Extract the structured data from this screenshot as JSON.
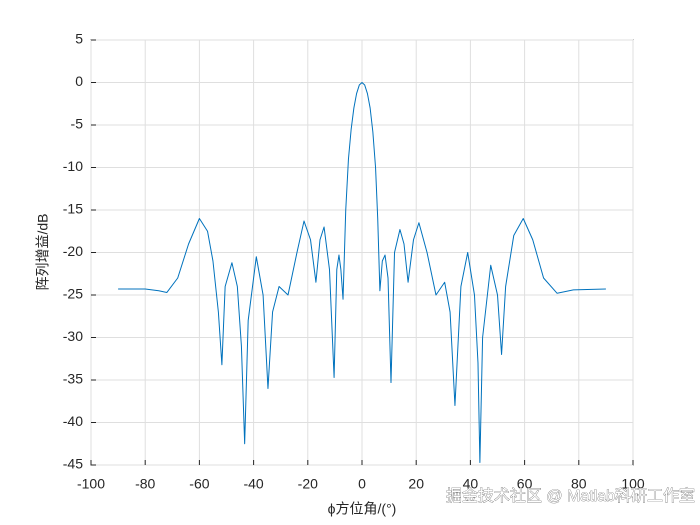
{
  "chart_data": {
    "type": "line",
    "xlabel": "ϕ方位角/(°)",
    "ylabel": "阵列增益/dB",
    "watermark": "掘金技术社区 @ Matlab科研工作室",
    "xlim": [
      -100,
      100
    ],
    "xticks": [
      -100,
      -80,
      -60,
      -40,
      -20,
      0,
      20,
      40,
      60,
      80,
      100
    ],
    "ylim": [
      -45,
      5
    ],
    "yticks": [
      -45,
      -40,
      -35,
      -30,
      -25,
      -20,
      -15,
      -10,
      -5,
      0,
      5
    ],
    "grid": true,
    "x": [
      -90,
      -80,
      -75,
      -72,
      -68,
      -64,
      -60,
      -57,
      -55,
      -53,
      -51.7,
      -50.5,
      -48,
      -46,
      -44.5,
      -43.3,
      -42,
      -39,
      -36.5,
      -34.7,
      -33,
      -30.6,
      -27.3,
      -24,
      -21.4,
      -19,
      -17,
      -15.5,
      -14,
      -12,
      -10.3,
      -9.3,
      -8.5,
      -7.8,
      -7,
      -6,
      -5,
      -4,
      -3,
      -2,
      -1,
      0,
      1,
      2,
      3,
      4,
      5,
      5.8,
      6.6,
      7.5,
      8.5,
      9.6,
      10.7,
      12,
      14,
      15.5,
      17,
      19,
      21,
      24,
      27.3,
      30.5,
      32.5,
      34.3,
      36.5,
      39,
      41.5,
      42.8,
      43.5,
      44.5,
      47.5,
      50,
      51.5,
      53,
      56,
      59.5,
      63,
      67,
      72,
      78,
      90
    ],
    "series": [
      {
        "color": "#0072bd",
        "values": [
          -24.3,
          -24.3,
          -24.5,
          -24.7,
          -23,
          -19,
          -16,
          -17.5,
          -21,
          -27,
          -33.2,
          -24,
          -21.2,
          -24,
          -31,
          -42.5,
          -28,
          -20.5,
          -25,
          -36,
          -27,
          -24,
          -25,
          -20,
          -16.3,
          -18.5,
          -23.5,
          -18.5,
          -17,
          -22,
          -34.7,
          -22,
          -20.3,
          -22,
          -25.5,
          -15,
          -9,
          -5.5,
          -3,
          -1.3,
          -0.3,
          0,
          -0.3,
          -1.3,
          -3,
          -5.8,
          -10,
          -16,
          -24.5,
          -21,
          -20.3,
          -23,
          -35.3,
          -20,
          -17.3,
          -19,
          -23.5,
          -18.5,
          -16.5,
          -20,
          -25,
          -23.5,
          -27,
          -38,
          -24,
          -20,
          -25,
          -33,
          -44.7,
          -30,
          -21.5,
          -25,
          -32,
          -24,
          -18,
          -16,
          -18.5,
          -23,
          -24.8,
          -24.4,
          -24.3
        ]
      }
    ]
  }
}
